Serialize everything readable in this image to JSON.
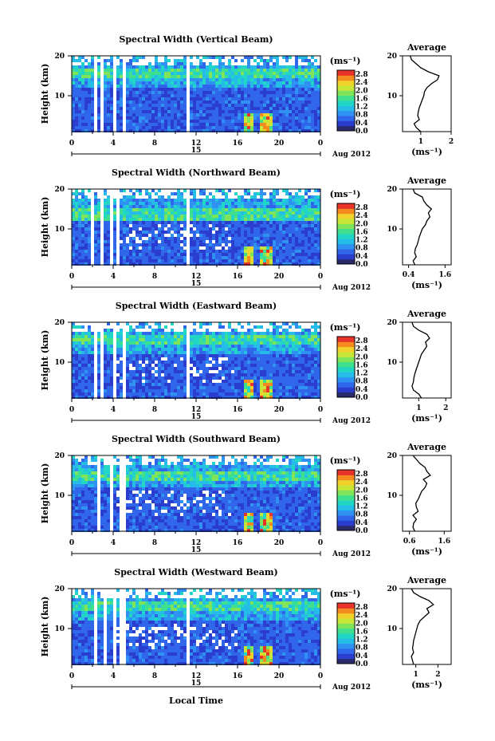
{
  "colors": {
    "scale": [
      "#2a2a6a",
      "#2a3dcf",
      "#2f66ea",
      "#2f91f2",
      "#25bde8",
      "#22d6c6",
      "#3ee08f",
      "#7fe45a",
      "#c7e638",
      "#f0d22a",
      "#f58a1f",
      "#e8332a"
    ],
    "line": "#000000"
  },
  "chart_data": [
    {
      "type": "heatmap",
      "title": "Spectral Width (Vertical Beam)",
      "ylabel": "Height (km)",
      "y_ticks": [
        "20",
        "10"
      ],
      "x_ticks": [
        "0",
        "4",
        "8",
        "12",
        "16",
        "20",
        "0"
      ],
      "date_label": "15",
      "month_label": "Aug 2012",
      "xlim": [
        0,
        24
      ],
      "ylim": [
        1,
        20
      ],
      "colorbar": {
        "unit": "(ms⁻¹)",
        "ticks": [
          "2.8",
          "2.4",
          "2.0",
          "1.6",
          "1.2",
          "0.8",
          "0.4",
          "0.0"
        ],
        "range": [
          0,
          3.0
        ]
      },
      "average": {
        "title": "Average",
        "x_ticks": [
          "1",
          "2"
        ],
        "xlim": [
          0.4,
          2.0
        ],
        "unit": "(ms⁻¹)",
        "heights": [
          1,
          2,
          3,
          4,
          5,
          6,
          7,
          8,
          9,
          10,
          11,
          12,
          13,
          14,
          15,
          16,
          17,
          18,
          19,
          20
        ],
        "values": [
          1.0,
          0.85,
          0.78,
          0.95,
          0.9,
          0.92,
          0.95,
          1.0,
          1.05,
          1.1,
          1.12,
          1.2,
          1.35,
          1.55,
          1.6,
          1.25,
          1.0,
          0.85,
          0.7,
          0.65
        ]
      }
    },
    {
      "type": "heatmap",
      "title": "Spectral Width (Northward Beam)",
      "ylabel": "Height (km)",
      "y_ticks": [
        "20",
        "10"
      ],
      "x_ticks": [
        "0",
        "4",
        "8",
        "12",
        "16",
        "20",
        "0"
      ],
      "date_label": "15",
      "month_label": "Aug 2012",
      "xlim": [
        0,
        24
      ],
      "ylim": [
        1,
        20
      ],
      "colorbar": {
        "unit": "(ms⁻¹)",
        "ticks": [
          "2.8",
          "2.4",
          "2.0",
          "1.6",
          "1.2",
          "0.8",
          "0.4",
          "0.0"
        ],
        "range": [
          0,
          3.0
        ]
      },
      "average": {
        "title": "Average",
        "x_ticks": [
          "0.4",
          "1.6"
        ],
        "xlim": [
          0.2,
          1.8
        ],
        "unit": "(ms⁻¹)",
        "heights": [
          1,
          2,
          3,
          4,
          5,
          6,
          7,
          8,
          9,
          10,
          11,
          12,
          13,
          14,
          15,
          16,
          17,
          18,
          19,
          20
        ],
        "values": [
          0.6,
          0.55,
          0.65,
          0.6,
          0.62,
          0.68,
          0.72,
          0.75,
          0.8,
          0.85,
          0.95,
          1.0,
          1.1,
          1.05,
          1.15,
          1.0,
          0.9,
          0.85,
          0.6,
          0.55
        ]
      }
    },
    {
      "type": "heatmap",
      "title": "Spectral Width (Eastward Beam)",
      "ylabel": "Height (km)",
      "y_ticks": [
        "20",
        "10"
      ],
      "x_ticks": [
        "0",
        "4",
        "8",
        "12",
        "16",
        "20",
        "0"
      ],
      "date_label": "15",
      "month_label": "Aug 2012",
      "xlim": [
        0,
        24
      ],
      "ylim": [
        1,
        20
      ],
      "colorbar": {
        "unit": "(ms⁻¹)",
        "ticks": [
          "2.8",
          "2.4",
          "2.0",
          "1.6",
          "1.2",
          "0.8",
          "0.4",
          "0.0"
        ],
        "range": [
          0,
          3.0
        ]
      },
      "average": {
        "title": "Average",
        "x_ticks": [
          "1",
          "2"
        ],
        "xlim": [
          0.4,
          2.2
        ],
        "unit": "(ms⁻¹)",
        "heights": [
          1,
          2,
          3,
          4,
          5,
          6,
          7,
          8,
          9,
          10,
          11,
          12,
          13,
          14,
          15,
          16,
          17,
          18,
          19,
          20
        ],
        "values": [
          1.1,
          1.0,
          0.8,
          0.75,
          0.8,
          0.82,
          0.85,
          0.9,
          0.95,
          1.0,
          1.05,
          1.1,
          1.2,
          1.3,
          1.25,
          1.4,
          1.3,
          1.0,
          0.8,
          0.75
        ]
      }
    },
    {
      "type": "heatmap",
      "title": "Spectral Width (Southward Beam)",
      "ylabel": "Height (km)",
      "y_ticks": [
        "20",
        "10"
      ],
      "x_ticks": [
        "0",
        "4",
        "8",
        "12",
        "16",
        "20",
        "0"
      ],
      "date_label": "15",
      "month_label": "Aug 2012",
      "xlim": [
        0,
        24
      ],
      "ylim": [
        1,
        20
      ],
      "colorbar": {
        "unit": "(ms⁻¹)",
        "ticks": [
          "2.8",
          "2.4",
          "2.0",
          "1.6",
          "1.2",
          "0.8",
          "0.4",
          "0.0"
        ],
        "range": [
          0,
          3.0
        ]
      },
      "average": {
        "title": "Average",
        "x_ticks": [
          "0.6",
          "1.6"
        ],
        "xlim": [
          0.4,
          1.8
        ],
        "unit": "(ms⁻¹)",
        "heights": [
          1,
          2,
          3,
          4,
          5,
          6,
          7,
          8,
          9,
          10,
          11,
          12,
          13,
          14,
          15,
          16,
          17,
          18,
          19,
          20
        ],
        "values": [
          0.75,
          0.7,
          0.72,
          0.8,
          0.7,
          0.85,
          0.8,
          0.78,
          0.85,
          0.9,
          0.95,
          1.05,
          1.1,
          1.0,
          1.2,
          1.1,
          1.05,
          0.9,
          0.8,
          0.7
        ]
      }
    },
    {
      "type": "heatmap",
      "title": "Spectral Width (Westward Beam)",
      "ylabel": "Height (km)",
      "y_ticks": [
        "20",
        "10"
      ],
      "x_ticks": [
        "0",
        "4",
        "8",
        "12",
        "16",
        "20",
        "0"
      ],
      "date_label": "15",
      "month_label": "Aug 2012",
      "xlabel": "Local Time",
      "xlim": [
        0,
        24
      ],
      "ylim": [
        1,
        20
      ],
      "colorbar": {
        "unit": "(ms⁻¹)",
        "ticks": [
          "2.8",
          "2.4",
          "2.0",
          "1.6",
          "1.2",
          "0.8",
          "0.4",
          "0.0"
        ],
        "range": [
          0,
          3.0
        ]
      },
      "average": {
        "title": "Average",
        "x_ticks": [
          "1",
          "2"
        ],
        "xlim": [
          0.4,
          2.6
        ],
        "unit": "(ms⁻¹)",
        "heights": [
          1,
          2,
          3,
          4,
          5,
          6,
          7,
          8,
          9,
          10,
          11,
          12,
          13,
          14,
          15,
          16,
          17,
          18,
          19,
          20
        ],
        "values": [
          0.9,
          0.85,
          0.8,
          0.9,
          0.85,
          0.88,
          0.9,
          0.95,
          1.0,
          1.05,
          1.1,
          1.2,
          1.4,
          1.6,
          1.5,
          1.8,
          1.6,
          1.2,
          0.9,
          0.8
        ]
      }
    }
  ]
}
